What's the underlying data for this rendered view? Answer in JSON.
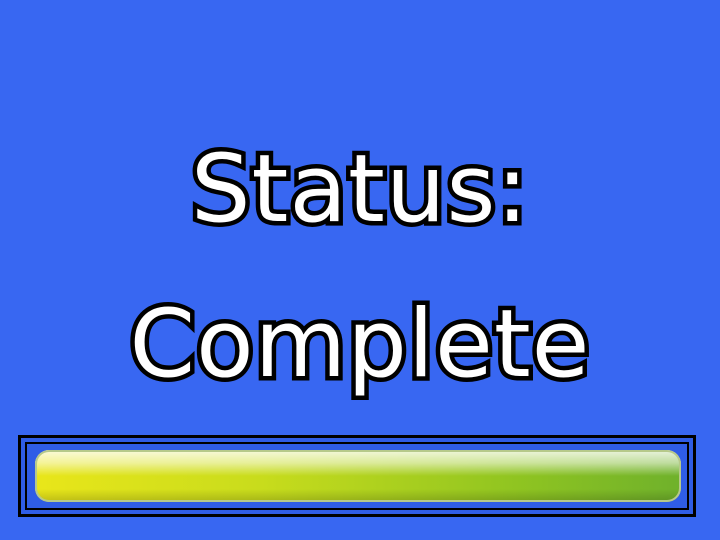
{
  "status": {
    "line1": "Status:",
    "line2": "Complete"
  },
  "progress": {
    "value_percent": 100
  },
  "colors": {
    "background": "#3867f2",
    "text_fill": "#ffffff",
    "text_outline": "#000000",
    "bar_start": "#e9e61a",
    "bar_end": "#6fb12b"
  }
}
